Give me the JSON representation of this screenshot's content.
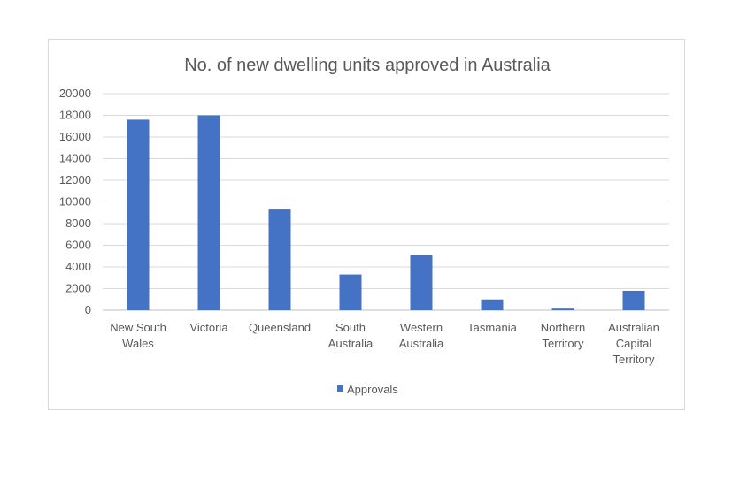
{
  "chart_data": {
    "type": "bar",
    "title": "No. of new dwelling units approved in Australia",
    "xlabel": "",
    "ylabel": "",
    "ylim": [
      0,
      20000
    ],
    "yticks": [
      0,
      2000,
      4000,
      6000,
      8000,
      10000,
      12000,
      14000,
      16000,
      18000,
      20000
    ],
    "grid": true,
    "legend_position": "bottom",
    "categories": [
      [
        "New South",
        "Wales"
      ],
      [
        "Victoria"
      ],
      [
        "Queensland"
      ],
      [
        "South",
        "Australia"
      ],
      [
        "Western",
        "Australia"
      ],
      [
        "Tasmania"
      ],
      [
        "Northern",
        "Territory"
      ],
      [
        "Australian",
        "Capital",
        "Territory"
      ]
    ],
    "series": [
      {
        "name": "Approvals",
        "color": "#4472c4",
        "values": [
          17600,
          18000,
          9300,
          3300,
          5100,
          1000,
          150,
          1800
        ]
      }
    ]
  }
}
